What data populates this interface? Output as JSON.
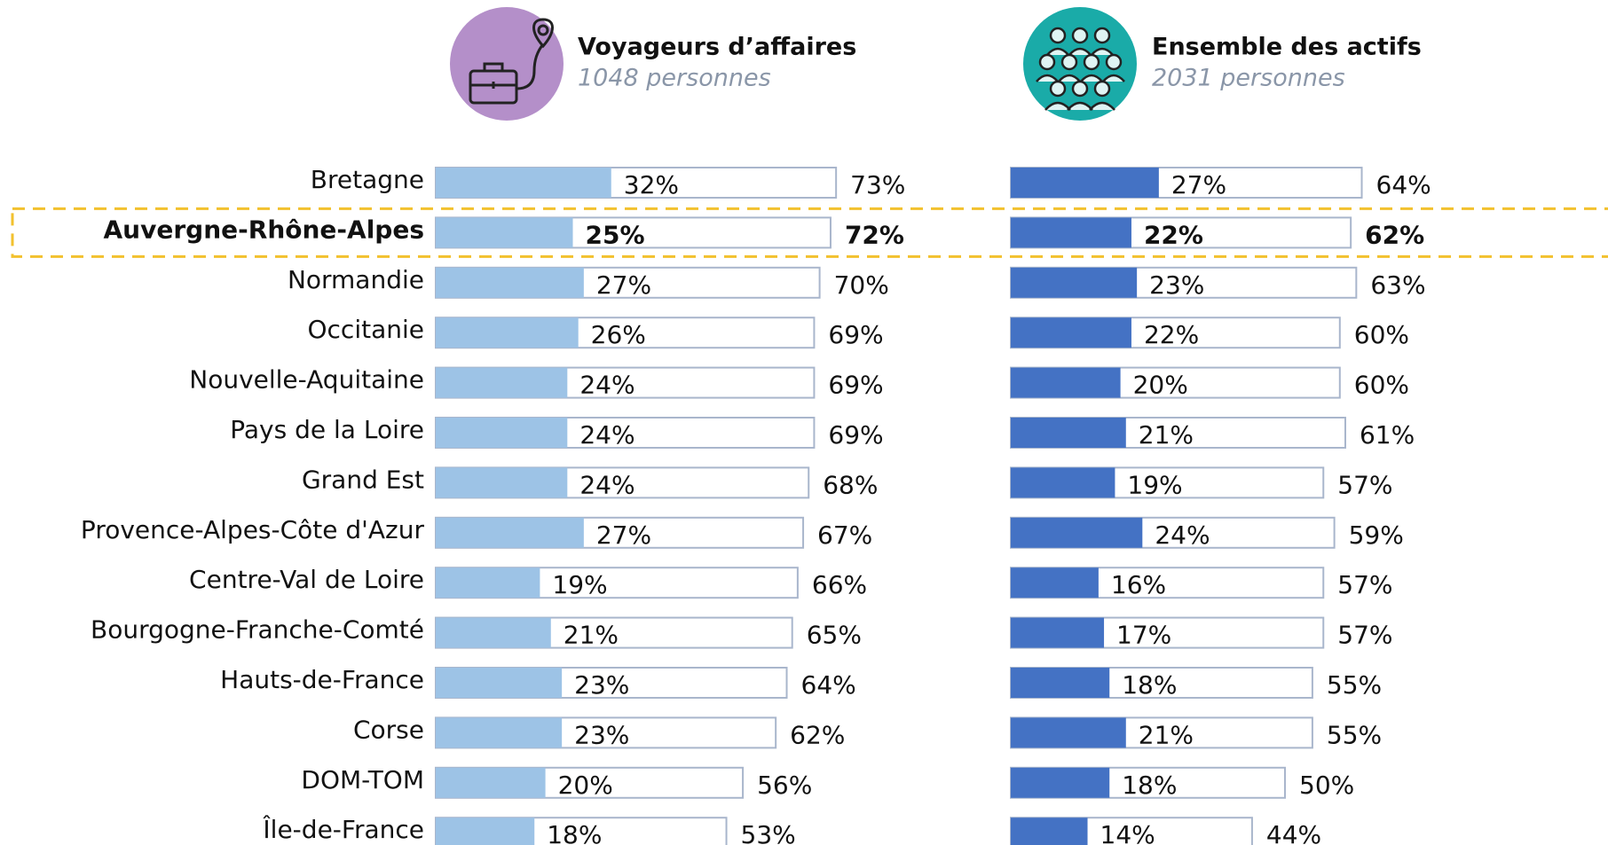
{
  "chart_data": {
    "type": "bar",
    "categories": [
      "Bretagne",
      "Auvergne-Rhône-Alpes",
      "Normandie",
      "Occitanie",
      "Nouvelle-Aquitaine",
      "Pays de la Loire",
      "Grand Est",
      "Provence-Alpes-Côte d'Azur",
      "Centre-Val de Loire",
      "Bourgogne-Franche-Comté",
      "Hauts-de-France",
      "Corse",
      "DOM-TOM",
      "Île-de-France"
    ],
    "highlight": 1,
    "highlight_color": "#f2c12e",
    "xlim": [
      0,
      100
    ],
    "panels": [
      {
        "title": "Voyageurs d’affaires",
        "subtitle": "1048 personnes",
        "icon_color": "#b48fc9",
        "series": [
          {
            "color": "#9dc3e6",
            "values": [
              32,
              25,
              27,
              26,
              24,
              24,
              24,
              27,
              19,
              21,
              23,
              23,
              20,
              18
            ],
            "value_labels": [
              "32%",
              "25%",
              "27%",
              "26%",
              "24%",
              "24%",
              "24%",
              "27%",
              "19%",
              "21%",
              "23%",
              "23%",
              "20%",
              "18%"
            ]
          },
          {
            "color": "#a9b6cc",
            "values": [
              73,
              72,
              70,
              69,
              69,
              69,
              68,
              67,
              66,
              65,
              64,
              62,
              56,
              53
            ],
            "value_labels": [
              "73%",
              "72%",
              "70%",
              "69%",
              "69%",
              "69%",
              "68%",
              "67%",
              "66%",
              "65%",
              "64%",
              "62%",
              "56%",
              "53%"
            ]
          }
        ]
      },
      {
        "title": "Ensemble des actifs",
        "subtitle": "2031 personnes",
        "icon_color": "#1aaba8",
        "series": [
          {
            "color": "#4472c4",
            "values": [
              27,
              22,
              23,
              22,
              20,
              21,
              19,
              24,
              16,
              17,
              18,
              21,
              18,
              14
            ],
            "value_labels": [
              "27%",
              "22%",
              "23%",
              "22%",
              "20%",
              "21%",
              "19%",
              "24%",
              "16%",
              "17%",
              "18%",
              "21%",
              "18%",
              "14%"
            ]
          },
          {
            "color": "#a9b6cc",
            "values": [
              64,
              62,
              63,
              60,
              60,
              61,
              57,
              59,
              57,
              57,
              55,
              55,
              50,
              44
            ],
            "value_labels": [
              "64%",
              "62%",
              "63%",
              "60%",
              "60%",
              "61%",
              "57%",
              "59%",
              "57%",
              "57%",
              "55%",
              "55%",
              "50%",
              "44%"
            ]
          }
        ]
      }
    ]
  }
}
